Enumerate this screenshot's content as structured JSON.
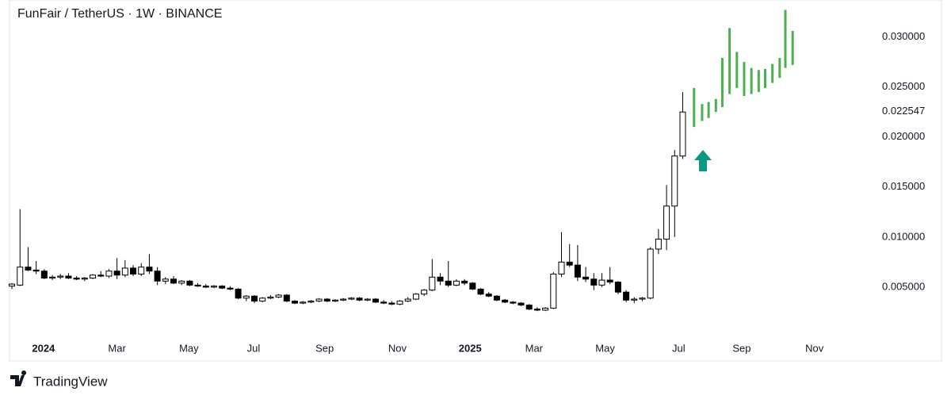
{
  "chart_data": {
    "type": "candlestick",
    "title": "FunFair / TetherUS · 1W · BINANCE",
    "brand": "TradingView",
    "up_color": "#ffffff",
    "down_color": "#000000",
    "outline_color": "#000000",
    "x": [
      0,
      1,
      2,
      3,
      4,
      5,
      6,
      7,
      8,
      9,
      10,
      11,
      12,
      13,
      14,
      15,
      16,
      17,
      18,
      19,
      20,
      21,
      22,
      23,
      24,
      25,
      26,
      27,
      28,
      29,
      30,
      31,
      32,
      33,
      34,
      35,
      36,
      37,
      38,
      39,
      40,
      41,
      42,
      43,
      44,
      45,
      46,
      47,
      48,
      49,
      50,
      51,
      52,
      53,
      54,
      55,
      56,
      57,
      58,
      59,
      60,
      61,
      62,
      63,
      64,
      65,
      66,
      67,
      68,
      69,
      70,
      71,
      72,
      73,
      74,
      75,
      76,
      77,
      78,
      79,
      80,
      81,
      82,
      83
    ],
    "open": [
      0.0051,
      0.0052,
      0.007,
      0.0067,
      0.0066,
      0.0059,
      0.006,
      0.0061,
      0.0059,
      0.0058,
      0.0059,
      0.0062,
      0.0061,
      0.0066,
      0.0062,
      0.0069,
      0.0063,
      0.007,
      0.0066,
      0.0056,
      0.0058,
      0.0054,
      0.0056,
      0.0052,
      0.0051,
      0.005,
      0.0051,
      0.0049,
      0.0048,
      0.0039,
      0.0041,
      0.0036,
      0.0039,
      0.004,
      0.0042,
      0.0036,
      0.0034,
      0.0035,
      0.0036,
      0.0038,
      0.0036,
      0.0037,
      0.0038,
      0.0039,
      0.0037,
      0.0038,
      0.0035,
      0.0034,
      0.0033,
      0.0036,
      0.0038,
      0.0043,
      0.0047,
      0.006,
      0.0056,
      0.0052,
      0.0056,
      0.0054,
      0.0048,
      0.0043,
      0.0041,
      0.0037,
      0.0035,
      0.0034,
      0.0032,
      0.0028,
      0.0027,
      0.0029,
      0.0063,
      0.0075,
      0.0072,
      0.006,
      0.0058,
      0.0052,
      0.0057,
      0.0055,
      0.0045,
      0.0037,
      0.0038,
      0.0039,
      0.0088,
      0.0098,
      0.0131,
      0.0181
    ],
    "high": [
      0.0054,
      0.0128,
      0.009,
      0.0076,
      0.0068,
      0.0062,
      0.0063,
      0.0064,
      0.0061,
      0.006,
      0.0063,
      0.0066,
      0.0068,
      0.0079,
      0.0077,
      0.0072,
      0.0074,
      0.0083,
      0.007,
      0.006,
      0.0061,
      0.0057,
      0.0057,
      0.0054,
      0.0053,
      0.0052,
      0.0052,
      0.0051,
      0.0049,
      0.0042,
      0.0042,
      0.004,
      0.0042,
      0.0043,
      0.0043,
      0.0037,
      0.0036,
      0.0037,
      0.0039,
      0.0039,
      0.0038,
      0.0039,
      0.004,
      0.004,
      0.0039,
      0.0039,
      0.0037,
      0.0036,
      0.0037,
      0.004,
      0.0044,
      0.0048,
      0.0078,
      0.0064,
      0.0076,
      0.0058,
      0.0058,
      0.0055,
      0.0049,
      0.0045,
      0.0042,
      0.0038,
      0.0036,
      0.0035,
      0.0033,
      0.003,
      0.003,
      0.0065,
      0.0105,
      0.0093,
      0.0092,
      0.007,
      0.0064,
      0.0064,
      0.007,
      0.0056,
      0.0047,
      0.004,
      0.004,
      0.009,
      0.0108,
      0.0152,
      0.0187,
      0.0245
    ],
    "low": [
      0.0048,
      0.0051,
      0.0066,
      0.0063,
      0.0058,
      0.0057,
      0.0058,
      0.0058,
      0.0057,
      0.0056,
      0.0058,
      0.006,
      0.0059,
      0.0058,
      0.006,
      0.0061,
      0.0061,
      0.0063,
      0.0052,
      0.0053,
      0.0053,
      0.0052,
      0.0051,
      0.005,
      0.0049,
      0.0049,
      0.0048,
      0.0047,
      0.0038,
      0.0036,
      0.0034,
      0.0035,
      0.0038,
      0.0039,
      0.0035,
      0.0033,
      0.0033,
      0.0034,
      0.0035,
      0.0035,
      0.0035,
      0.0036,
      0.0037,
      0.0036,
      0.0036,
      0.0034,
      0.0033,
      0.0032,
      0.0032,
      0.0035,
      0.0037,
      0.0041,
      0.0046,
      0.0052,
      0.005,
      0.0051,
      0.0052,
      0.0047,
      0.0042,
      0.004,
      0.0036,
      0.0034,
      0.0033,
      0.0031,
      0.0027,
      0.0026,
      0.0026,
      0.0028,
      0.006,
      0.007,
      0.0056,
      0.0055,
      0.0047,
      0.005,
      0.0053,
      0.0043,
      0.0035,
      0.0034,
      0.0036,
      0.0038,
      0.0083,
      0.0087,
      0.01,
      0.0178
    ],
    "close": [
      0.0053,
      0.007,
      0.0067,
      0.0066,
      0.0059,
      0.006,
      0.0061,
      0.0059,
      0.0058,
      0.0059,
      0.0062,
      0.0061,
      0.0066,
      0.0062,
      0.0069,
      0.0063,
      0.007,
      0.0066,
      0.0056,
      0.0058,
      0.0054,
      0.0056,
      0.0052,
      0.0051,
      0.005,
      0.0051,
      0.0049,
      0.0048,
      0.0039,
      0.0041,
      0.0036,
      0.0039,
      0.004,
      0.0042,
      0.0036,
      0.0034,
      0.0035,
      0.0036,
      0.0038,
      0.0036,
      0.0037,
      0.0038,
      0.0039,
      0.0037,
      0.0038,
      0.0035,
      0.0034,
      0.0033,
      0.0036,
      0.0038,
      0.0043,
      0.0047,
      0.006,
      0.0056,
      0.0052,
      0.0056,
      0.0054,
      0.0048,
      0.0043,
      0.0041,
      0.0037,
      0.0035,
      0.0034,
      0.0032,
      0.0028,
      0.0027,
      0.0029,
      0.0063,
      0.0075,
      0.0072,
      0.006,
      0.0058,
      0.0052,
      0.0057,
      0.0055,
      0.0045,
      0.0037,
      0.0038,
      0.0039,
      0.0088,
      0.0098,
      0.0131,
      0.0181,
      0.0225
    ],
    "projection": {
      "color": "#4caf50",
      "x": [
        84.4,
        85.4,
        86.2,
        87.1,
        87.9,
        88.8,
        89.7,
        90.6,
        91.5,
        92.4,
        93.2,
        94.1,
        95.0,
        95.7,
        96.6
      ],
      "high": [
        0.0249,
        0.0233,
        0.0235,
        0.0238,
        0.0279,
        0.0309,
        0.0285,
        0.0275,
        0.0269,
        0.0267,
        0.0268,
        0.0273,
        0.0279,
        0.0327,
        0.0306
      ],
      "low": [
        0.021,
        0.0216,
        0.0219,
        0.0225,
        0.023,
        0.0243,
        0.0249,
        0.0241,
        0.0243,
        0.0245,
        0.0249,
        0.0254,
        0.0259,
        0.0269,
        0.0272
      ]
    },
    "last_price": {
      "value": 0.022547,
      "label": "0.022547"
    },
    "xlim": [
      -0.3,
      105.9
    ],
    "xticks": [
      {
        "value": 3.9,
        "label": "2024"
      },
      {
        "value": 13.0,
        "label": "Mar"
      },
      {
        "value": 21.9,
        "label": "May"
      },
      {
        "value": 29.9,
        "label": "Jul"
      },
      {
        "value": 38.7,
        "label": "Sep"
      },
      {
        "value": 47.7,
        "label": "Nov"
      },
      {
        "value": 56.7,
        "label": "2025"
      },
      {
        "value": 64.6,
        "label": "Mar"
      },
      {
        "value": 73.4,
        "label": "May"
      },
      {
        "value": 82.5,
        "label": "Jul"
      },
      {
        "value": 90.3,
        "label": "Sep"
      },
      {
        "value": 99.3,
        "label": "Nov"
      }
    ],
    "ylim": [
      0,
      0.0329
    ],
    "yticks": [
      {
        "value": 0.005,
        "label": "0.005000"
      },
      {
        "value": 0.01,
        "label": "0.010000"
      },
      {
        "value": 0.015,
        "label": "0.015000"
      },
      {
        "value": 0.02,
        "label": "0.020000"
      },
      {
        "value": 0.025,
        "label": "0.025000"
      },
      {
        "value": 0.03,
        "label": "0.030000"
      }
    ]
  }
}
